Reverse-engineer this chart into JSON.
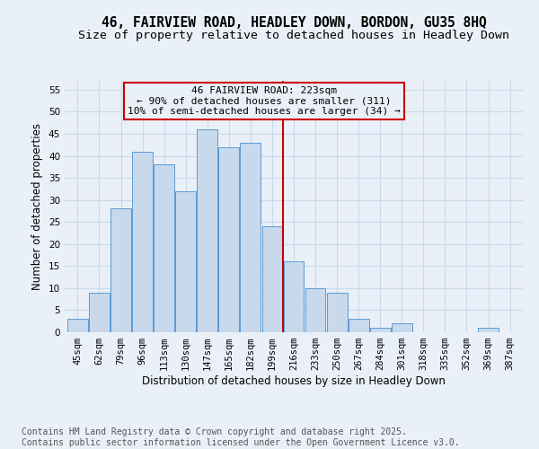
{
  "title1": "46, FAIRVIEW ROAD, HEADLEY DOWN, BORDON, GU35 8HQ",
  "title2": "Size of property relative to detached houses in Headley Down",
  "xlabel": "Distribution of detached houses by size in Headley Down",
  "ylabel": "Number of detached properties",
  "categories": [
    "45sqm",
    "62sqm",
    "79sqm",
    "96sqm",
    "113sqm",
    "130sqm",
    "147sqm",
    "165sqm",
    "182sqm",
    "199sqm",
    "216sqm",
    "233sqm",
    "250sqm",
    "267sqm",
    "284sqm",
    "301sqm",
    "318sqm",
    "335sqm",
    "352sqm",
    "369sqm",
    "387sqm"
  ],
  "values": [
    3,
    9,
    28,
    41,
    38,
    32,
    46,
    42,
    43,
    24,
    16,
    10,
    9,
    3,
    1,
    2,
    0,
    0,
    0,
    1,
    0
  ],
  "bar_color": "#c8d9ec",
  "bar_edge_color": "#5b9bd5",
  "grid_color": "#c8d9ec",
  "background_color": "#eaf0f8",
  "vline_x": 9.5,
  "vline_color": "#cc0000",
  "annotation_text": "46 FAIRVIEW ROAD: 223sqm\n← 90% of detached houses are smaller (311)\n10% of semi-detached houses are larger (34) →",
  "annotation_box_color": "#cc0000",
  "ylim": [
    0,
    57
  ],
  "yticks": [
    0,
    5,
    10,
    15,
    20,
    25,
    30,
    35,
    40,
    45,
    50,
    55
  ],
  "footer1": "Contains HM Land Registry data © Crown copyright and database right 2025.",
  "footer2": "Contains public sector information licensed under the Open Government Licence v3.0.",
  "title_fontsize": 10.5,
  "subtitle_fontsize": 9.5,
  "axis_label_fontsize": 8.5,
  "tick_fontsize": 7.5,
  "annotation_fontsize": 8,
  "footer_fontsize": 7
}
